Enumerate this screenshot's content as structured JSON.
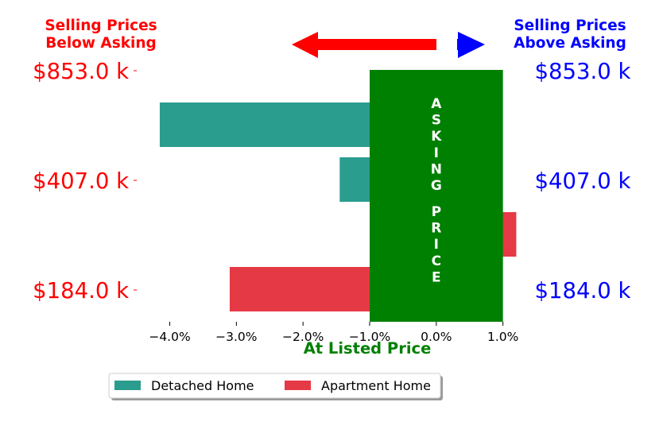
{
  "colors": {
    "detached": "#2a9d8f",
    "apartment": "#e63946",
    "asking_band": "#008000",
    "below": "#ff0000",
    "above": "#0000ff",
    "band_text": "#ffffff"
  },
  "chart_data": {
    "type": "bar",
    "orientation": "horizontal",
    "xlabel": "At Listed Price",
    "xlim": [
      -4.4,
      1.35
    ],
    "x_ticks": [
      {
        "value": -4.0,
        "label": "−4.0%"
      },
      {
        "value": -3.0,
        "label": "−3.0%"
      },
      {
        "value": -2.0,
        "label": "−2.0%"
      },
      {
        "value": -1.0,
        "label": "−1.0%"
      },
      {
        "value": 0.0,
        "label": "0.0%"
      },
      {
        "value": 1.0,
        "label": "1.0%"
      }
    ],
    "y_tick_labels": [
      "$853.0 k",
      "$407.0 k",
      "$184.0 k"
    ],
    "series": [
      {
        "name": "Detached Home",
        "color_key": "detached",
        "values": [
          -4.15,
          -1.45,
          null
        ]
      },
      {
        "name": "Apartment Home",
        "color_key": "apartment",
        "values": [
          null,
          1.2,
          -3.1
        ]
      }
    ],
    "asking_band": {
      "x_range": [
        -1.0,
        1.0
      ],
      "label_words": [
        "ASKING",
        "PRICE"
      ]
    },
    "annotations": {
      "below": {
        "text_lines": [
          "Selling Prices",
          "Below Asking"
        ]
      },
      "above": {
        "text_lines": [
          "Selling Prices",
          "Above Asking"
        ]
      }
    },
    "legend": {
      "placement": "bottom-center"
    }
  }
}
